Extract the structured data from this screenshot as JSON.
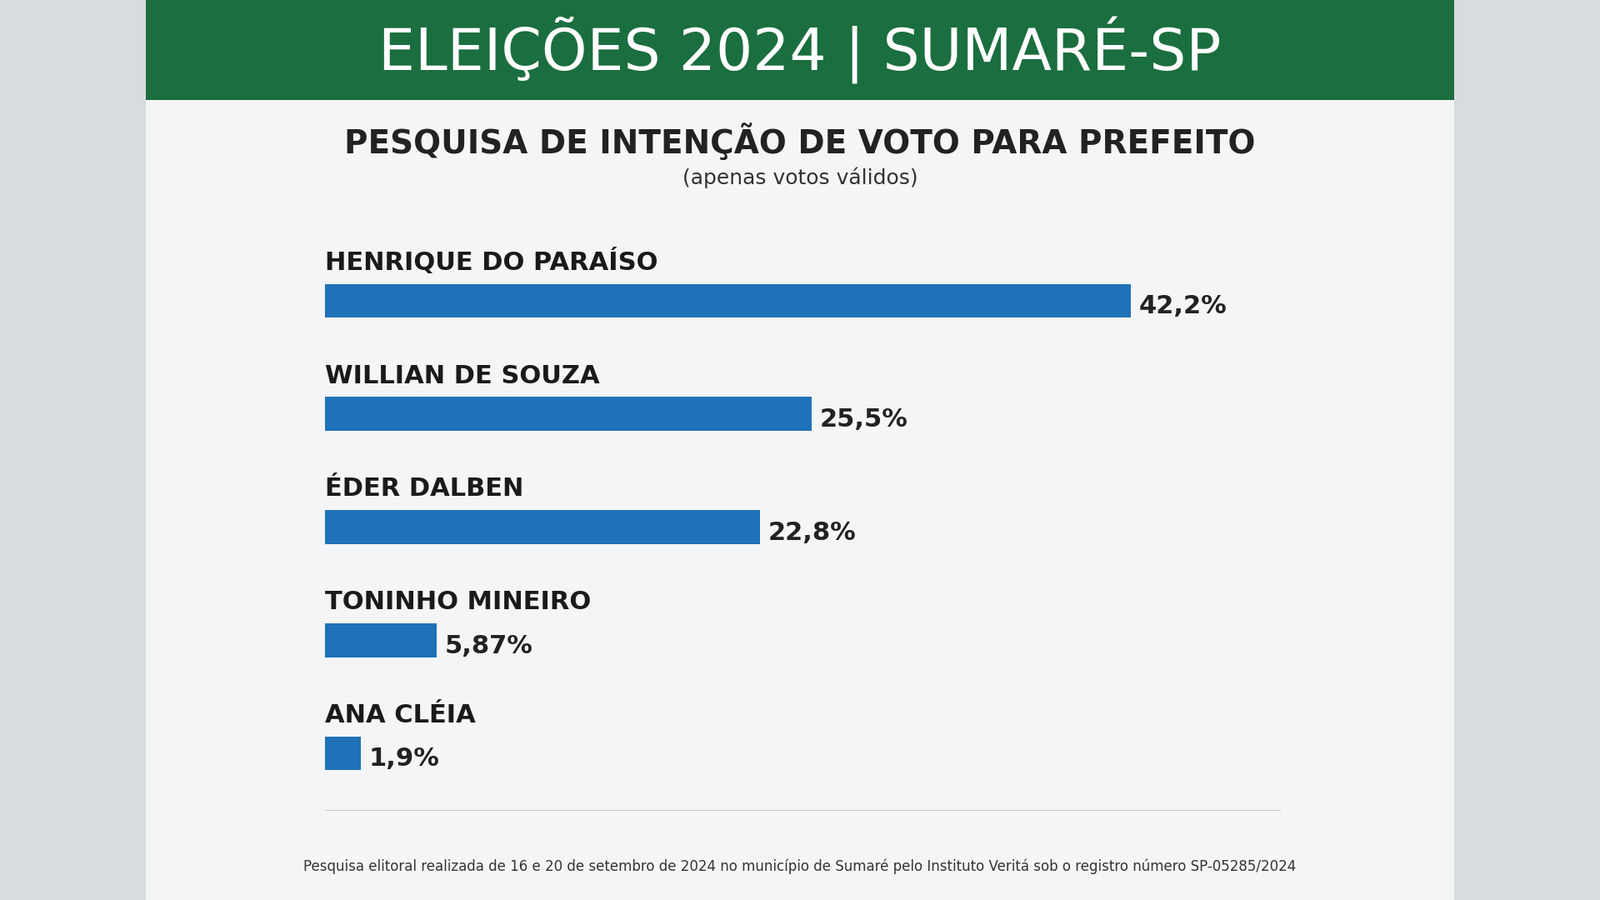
{
  "header": "ELEIÇÕES 2024 | SUMARÉ-SP",
  "footnote": "Pesquisa elitoral realizada de 16 e 20 de setembro de 2024 no município de Sumaré pelo Instituto Veritá sob o registro número SP-05285/2024",
  "chart_data": {
    "type": "bar",
    "orientation": "horizontal",
    "title": "PESQUISA DE INTENÇÃO DE VOTO PARA PREFEITO",
    "subtitle": "(apenas votos válidos)",
    "categories": [
      "HENRIQUE DO PARAÍSO",
      "WILLIAN DE SOUZA",
      "ÉDER DALBEN",
      "TONINHO MINEIRO",
      "ANA CLÉIA"
    ],
    "values": [
      42.2,
      25.5,
      22.8,
      5.87,
      1.9
    ],
    "value_labels": [
      "42,2%",
      "25,5%",
      "22,8%",
      "5,87%",
      "1,9%"
    ],
    "data_labels": true,
    "color": "#1f72b8",
    "xlim": [
      0,
      50
    ],
    "grid": false,
    "tick_labels": false
  }
}
